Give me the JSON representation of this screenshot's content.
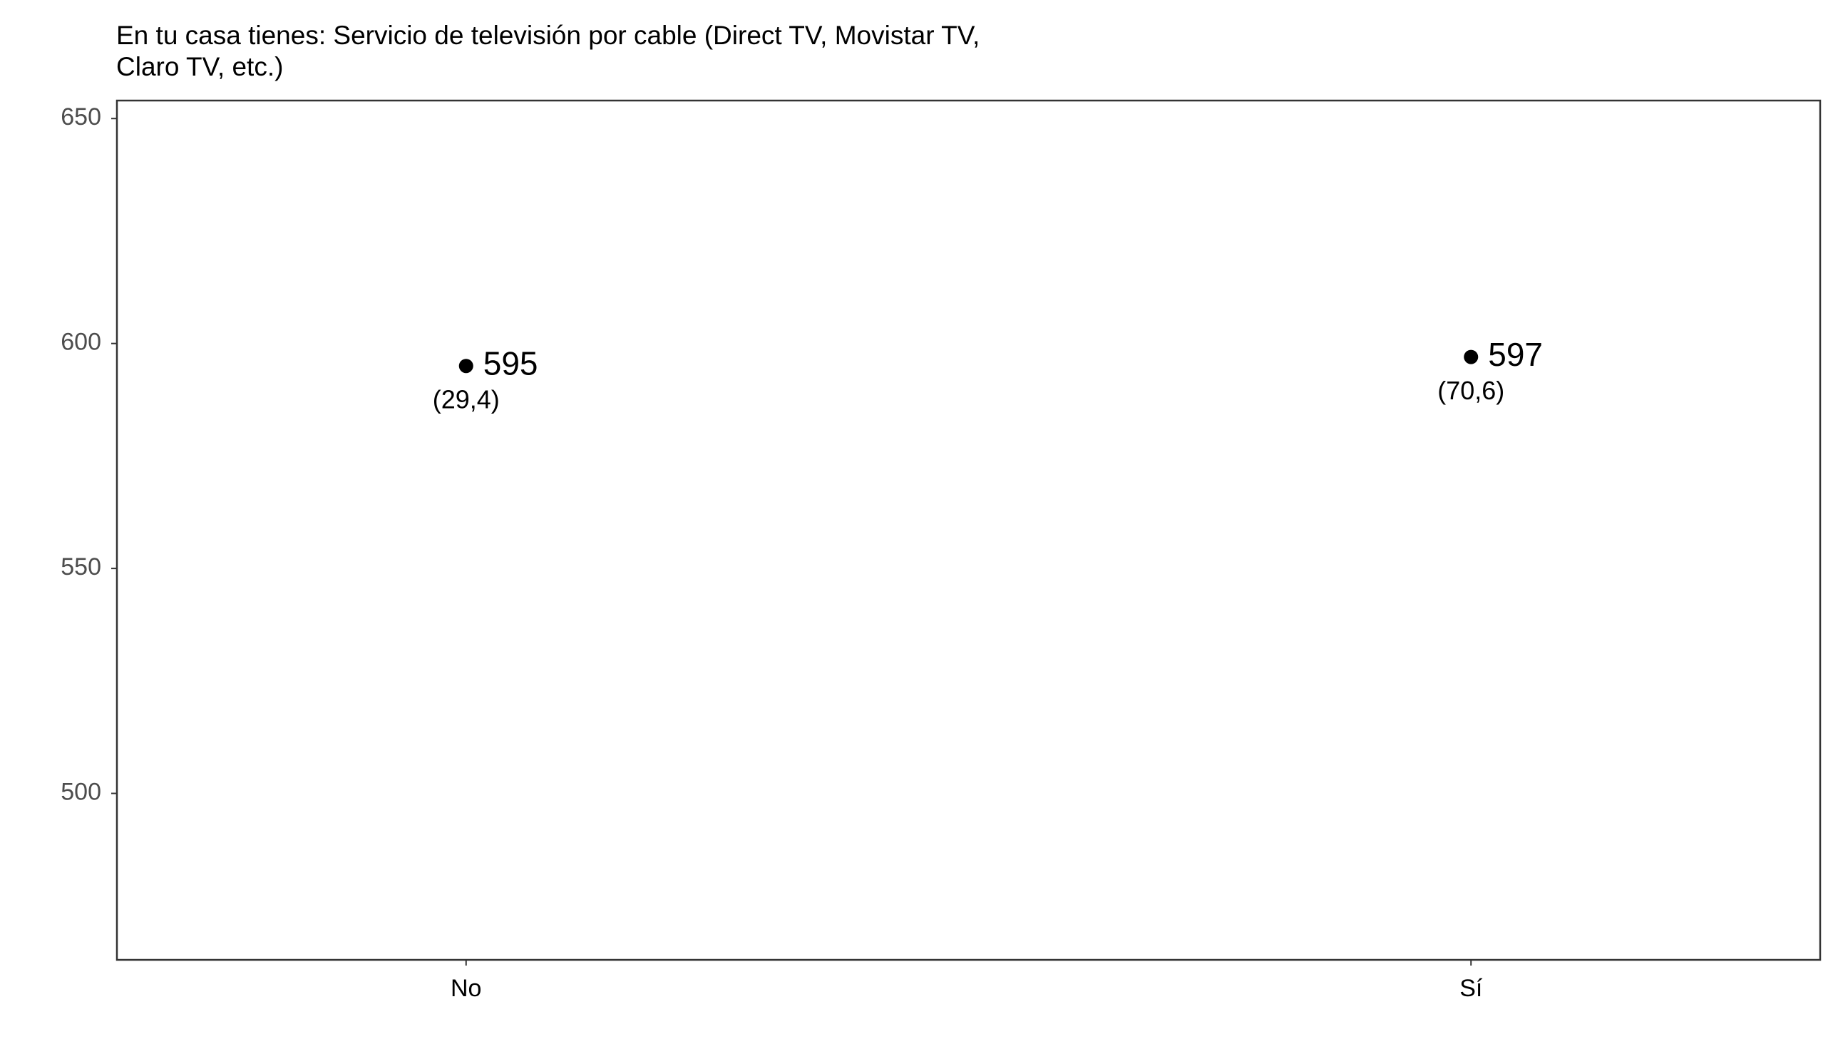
{
  "chart_data": {
    "type": "scatter",
    "title_lines": [
      "En tu casa tienes: Servicio de televisión por cable (Direct TV, Movistar TV,",
      "Claro TV, etc.)"
    ],
    "xlabel": "",
    "ylabel": "",
    "categories": [
      "No",
      "Sí"
    ],
    "values": [
      595,
      597
    ],
    "value_labels": [
      "595",
      "597"
    ],
    "percent_labels": [
      "(29,4)",
      "(70,6)"
    ],
    "percentages": [
      29.4,
      70.6
    ],
    "ylim": [
      463,
      654
    ],
    "yticks": [
      500,
      550,
      600,
      650
    ],
    "ytick_labels": [
      "500",
      "550",
      "600",
      "650"
    ],
    "grid": false,
    "legend": "none",
    "point_color": "#000000"
  }
}
